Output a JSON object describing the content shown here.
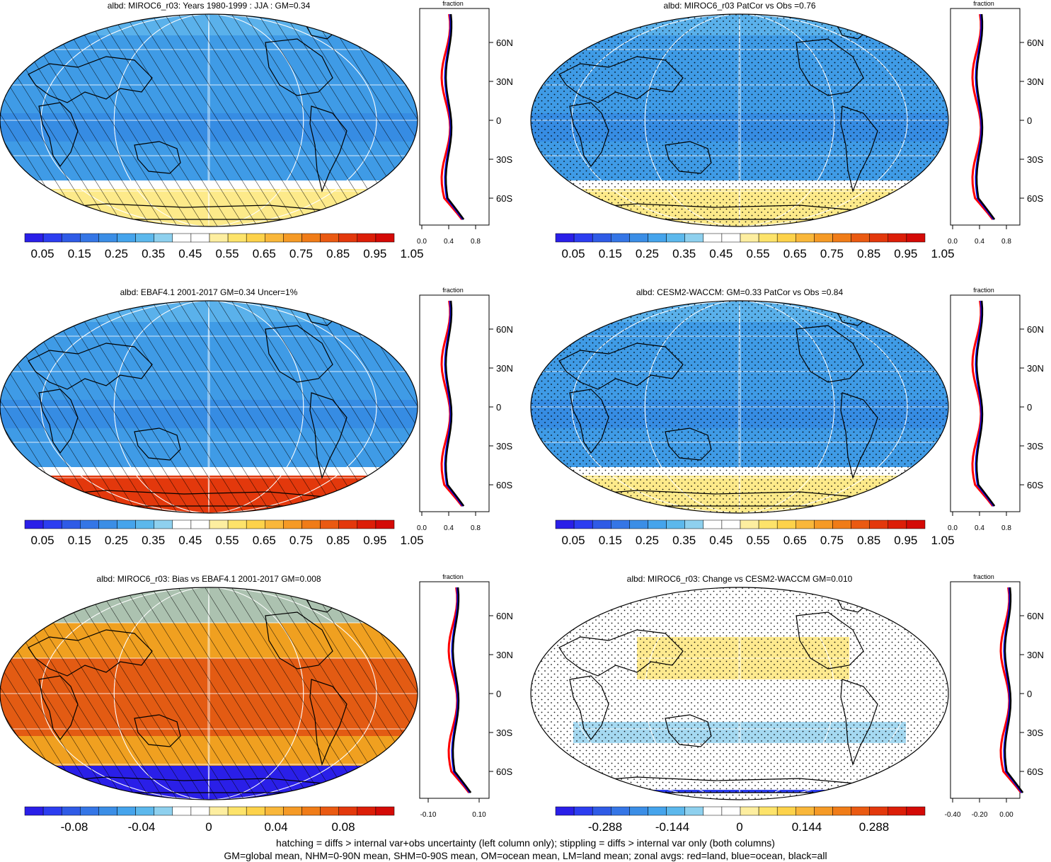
{
  "panels": [
    {
      "title": "albd: MIROC6_r03: Years 1980-1999 : JJA : GM=0.34",
      "scale": "abs",
      "overlay": "hatch",
      "cbar_labels": [
        "0.05",
        "0.15",
        "0.25",
        "0.35",
        "0.45",
        "0.55",
        "0.65",
        "0.75",
        "0.85",
        "0.95",
        "1.05"
      ],
      "zonal_title": "fraction",
      "zonal_ticks": [
        "0.0",
        "0.4",
        "0.8"
      ],
      "zonal_lat_labels": [
        "60N",
        "30N",
        "0",
        "30S",
        "60S"
      ]
    },
    {
      "title": "albd: MIROC6_r03 PatCor vs Obs =0.76",
      "scale": "abs",
      "overlay": "stipple",
      "cbar_labels": [
        "0.05",
        "0.15",
        "0.25",
        "0.35",
        "0.45",
        "0.55",
        "0.65",
        "0.75",
        "0.85",
        "0.95",
        "1.05"
      ],
      "zonal_title": "fraction",
      "zonal_ticks": [
        "0.0",
        "0.4",
        "0.8"
      ],
      "zonal_lat_labels": [
        "60N",
        "30N",
        "0",
        "30S",
        "60S"
      ]
    },
    {
      "title": "albd: EBAF4.1 2001-2017 GM=0.34 Uncer=1%",
      "scale": "abs",
      "overlay": "hatch",
      "cbar_labels": [
        "0.05",
        "0.15",
        "0.25",
        "0.35",
        "0.45",
        "0.55",
        "0.65",
        "0.75",
        "0.85",
        "0.95",
        "1.05"
      ],
      "zonal_title": "fraction",
      "zonal_ticks": [
        "0.0",
        "0.4",
        "0.8"
      ],
      "zonal_lat_labels": [
        "60N",
        "30N",
        "0",
        "30S",
        "60S"
      ]
    },
    {
      "title": "albd: CESM2-WACCM: GM=0.33 PatCor vs Obs =0.84",
      "scale": "abs",
      "overlay": "stipple",
      "cbar_labels": [
        "0.05",
        "0.15",
        "0.25",
        "0.35",
        "0.45",
        "0.55",
        "0.65",
        "0.75",
        "0.85",
        "0.95",
        "1.05"
      ],
      "zonal_title": "fraction",
      "zonal_ticks": [
        "0.0",
        "0.4",
        "0.8"
      ],
      "zonal_lat_labels": [
        "60N",
        "30N",
        "0",
        "30S",
        "60S"
      ]
    },
    {
      "title": "albd: MIROC6_r03: Bias vs EBAF4.1 2001-2017 GM=0.008",
      "scale": "bias",
      "overlay": "hatch",
      "cbar_labels": [
        "-0.08",
        "-0.04",
        "0",
        "0.04",
        "0.08"
      ],
      "zonal_title": "fraction",
      "zonal_ticks": [
        "-0.10",
        "0.10"
      ],
      "zonal_lat_labels": [
        "60N",
        "30N",
        "0",
        "30S",
        "60S"
      ]
    },
    {
      "title": "albd: MIROC6_r03: Change vs CESM2-WACCM GM=0.010",
      "scale": "change",
      "overlay": "stipple",
      "cbar_labels": [
        "-0.288",
        "-0.144",
        "0",
        "0.144",
        "0.288"
      ],
      "zonal_title": "fraction",
      "zonal_ticks": [
        "-0.40",
        "-0.20",
        "0.00"
      ],
      "zonal_lat_labels": [
        "60N",
        "30N",
        "0",
        "30S",
        "60S"
      ]
    }
  ],
  "footer": {
    "line1": "hatching = diffs > internal var+obs uncertainty (left column only); stippling = diffs > internal var only (both columns)",
    "line2": "GM=global mean, NHM=0-90N mean, SHM=0-90S mean, OM=ocean mean, LM=land mean; zonal avgs: red=land, blue=ocean, black=all"
  },
  "colors": {
    "zonal_land": "#ff0000",
    "zonal_ocean": "#0000ff",
    "zonal_all": "#000000",
    "abs_palette": [
      "#2a1fe8",
      "#2c3df0",
      "#2f5be6",
      "#3576e6",
      "#3b8ee6",
      "#45a4ec",
      "#5cb8ec",
      "#8ed0ee",
      "#ffffff",
      "#ffffff",
      "#fdeea0",
      "#fde36a",
      "#fdd24a",
      "#f9b73a",
      "#f59a26",
      "#f07c18",
      "#ea5a12",
      "#e3380c",
      "#dc1e08",
      "#d40a06"
    ],
    "bias_palette": [
      "#2a1fe8",
      "#2c3df0",
      "#2f5be6",
      "#3576e6",
      "#3b8ee6",
      "#45a4ec",
      "#5cb8ec",
      "#8ed0ee",
      "#ffffff",
      "#ffffff",
      "#fdeea0",
      "#fde36a",
      "#fdd24a",
      "#f9b73a",
      "#f59a26",
      "#f07c18",
      "#ea5a12",
      "#e3380c",
      "#dc1e08",
      "#d40a06"
    ]
  }
}
